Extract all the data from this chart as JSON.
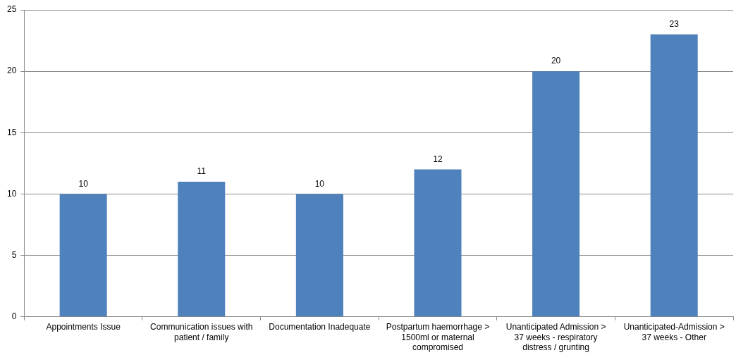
{
  "chart_data": {
    "type": "bar",
    "categories": [
      "Appointments Issue",
      "Communication issues with patient / family",
      "Documentation Inadequate",
      "Postpartum haemorrhage > 1500ml or maternal compromised",
      "Unanticipated Admission > 37 weeks - respiratory distress / grunting",
      "Unanticipated-Admission > 37 weeks - Other"
    ],
    "values": [
      10,
      11,
      10,
      12,
      20,
      23
    ],
    "color": "#4f81bd",
    "ylim": [
      0,
      25
    ],
    "yticks": [
      0,
      5,
      10,
      15,
      20,
      25
    ],
    "grid": "y",
    "data_labels": true,
    "legend": false
  }
}
